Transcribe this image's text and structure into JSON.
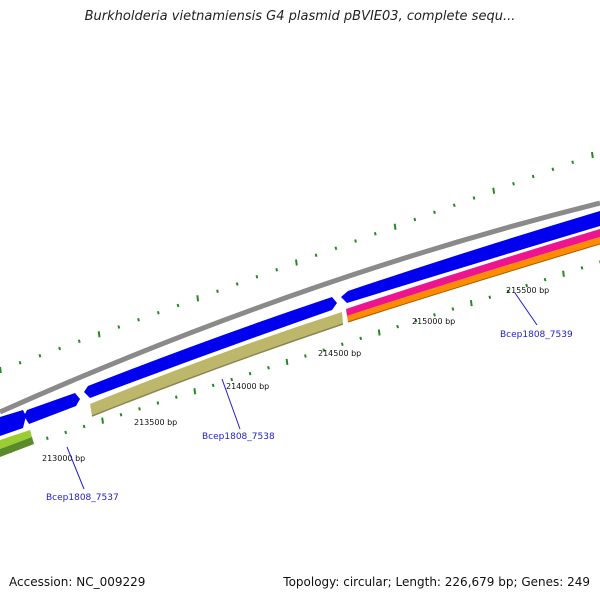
{
  "title": "Burkholderia vietnamiensis G4 plasmid pBVIE03, complete sequ...",
  "footer": {
    "accession": "Accession: NC_009229",
    "summary": "Topology: circular; Length: 226,679 bp; Genes: 249"
  },
  "map": {
    "bp_labels": [
      "213000 bp",
      "213500 bp",
      "214000 bp",
      "214500 bp",
      "215000 bp",
      "215500 bp"
    ],
    "gene_labels": [
      "Bcep1808_7537",
      "Bcep1808_7538",
      "Bcep1808_7539"
    ],
    "colors": {
      "backbone": "#8a8a8a",
      "cds_forward": "#0000ee",
      "gene_7538": "#bdb76b",
      "gene_7539_pink": "#ee1490",
      "gene_7539_orange": "#ff8c00",
      "ticks": "#228b22",
      "label_text": "#2020cc"
    }
  }
}
